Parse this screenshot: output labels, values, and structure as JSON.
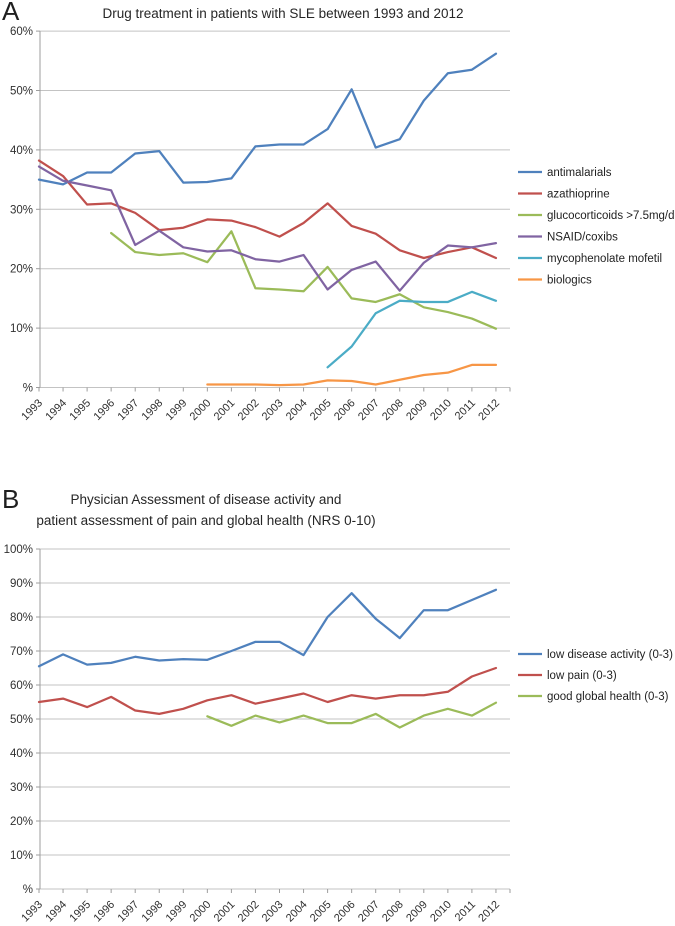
{
  "panels": [
    {
      "label": "A",
      "title": "Drug treatment in patients with SLE between 1993 and 2012"
    },
    {
      "label": "B",
      "title_line1": "Physician Assessment of disease activity and",
      "title_line2": "patient assessment of pain and global health (NRS 0-10)"
    }
  ],
  "chart_data": [
    {
      "type": "line",
      "title": "Drug treatment in patients with SLE between 1993 and 2012",
      "x": [
        1993,
        1994,
        1995,
        1996,
        1997,
        1998,
        1999,
        2000,
        2001,
        2002,
        2003,
        2004,
        2005,
        2006,
        2007,
        2008,
        2009,
        2010,
        2011,
        2012
      ],
      "ylim": [
        0,
        60
      ],
      "ytick_step": 10,
      "ytick_labels": [
        "%",
        "10%",
        "20%",
        "30%",
        "40%",
        "50%",
        "60%"
      ],
      "grid": true,
      "legend_position": "right",
      "series": [
        {
          "name": "antimalarials",
          "color": "#4F81BD",
          "values": [
            35.0,
            34.2,
            36.2,
            36.2,
            39.4,
            39.8,
            34.5,
            34.6,
            35.2,
            40.6,
            40.9,
            40.9,
            43.5,
            50.2,
            40.4,
            41.8,
            48.3,
            52.9,
            53.5,
            56.2
          ]
        },
        {
          "name": "azathioprine",
          "color": "#C0504D",
          "values": [
            38.2,
            35.6,
            30.8,
            31.0,
            29.4,
            26.5,
            26.9,
            28.3,
            28.1,
            27.0,
            25.4,
            27.7,
            31.0,
            27.2,
            25.9,
            23.1,
            21.8,
            22.8,
            23.6,
            21.8
          ]
        },
        {
          "name": "glucocorticoids >7.5mg/d",
          "color": "#9BBB59",
          "values": [
            null,
            null,
            null,
            26.0,
            22.8,
            22.3,
            22.6,
            21.1,
            26.3,
            16.7,
            16.5,
            16.2,
            20.3,
            15.0,
            14.4,
            15.7,
            13.5,
            12.7,
            11.6,
            9.9
          ]
        },
        {
          "name": "NSAID/coxibs",
          "color": "#8064A2",
          "values": [
            37.2,
            34.8,
            34.0,
            33.2,
            24.0,
            26.4,
            23.6,
            22.9,
            23.1,
            21.6,
            21.2,
            22.3,
            16.5,
            19.8,
            21.2,
            16.3,
            21.0,
            23.9,
            23.6,
            24.3
          ]
        },
        {
          "name": "mycophenolate mofetil",
          "color": "#4BACC6",
          "values": [
            null,
            null,
            null,
            null,
            null,
            null,
            null,
            null,
            null,
            null,
            null,
            null,
            3.4,
            6.9,
            12.5,
            14.6,
            14.4,
            14.4,
            16.1,
            14.6
          ]
        },
        {
          "name": "biologics",
          "color": "#F79646",
          "values": [
            null,
            null,
            null,
            null,
            null,
            null,
            null,
            0.5,
            0.5,
            0.5,
            0.4,
            0.5,
            1.2,
            1.1,
            0.5,
            1.3,
            2.1,
            2.5,
            3.8,
            3.8
          ]
        }
      ]
    },
    {
      "type": "line",
      "title": "Physician Assessment of disease activity and patient assessment of pain and global health (NRS 0-10)",
      "x": [
        1993,
        1994,
        1995,
        1996,
        1997,
        1998,
        1999,
        2000,
        2001,
        2002,
        2003,
        2004,
        2005,
        2006,
        2007,
        2008,
        2009,
        2010,
        2011,
        2012
      ],
      "ylim": [
        0,
        100
      ],
      "ytick_step": 10,
      "ytick_labels": [
        "%",
        "10%",
        "20%",
        "30%",
        "40%",
        "50%",
        "60%",
        "70%",
        "80%",
        "90%",
        "100%"
      ],
      "grid": true,
      "legend_position": "right",
      "series": [
        {
          "name": "low disease activity (0-3)",
          "color": "#4F81BD",
          "values": [
            65.5,
            69.0,
            66.0,
            66.5,
            68.3,
            67.2,
            67.6,
            67.4,
            70.0,
            72.7,
            72.7,
            68.8,
            80.0,
            87.0,
            79.5,
            73.8,
            82.0,
            82.0,
            85.0,
            88.0
          ]
        },
        {
          "name": "low pain (0-3)",
          "color": "#C0504D",
          "values": [
            55.0,
            56.0,
            53.5,
            56.5,
            52.5,
            51.5,
            53.0,
            55.5,
            57.0,
            54.5,
            56.0,
            57.5,
            55.0,
            57.0,
            56.0,
            57.0,
            57.0,
            58.0,
            62.5,
            65.0
          ]
        },
        {
          "name": "good global health (0-3)",
          "color": "#9BBB59",
          "values": [
            null,
            null,
            null,
            null,
            null,
            null,
            null,
            50.8,
            48.0,
            51.0,
            49.0,
            51.0,
            48.8,
            48.8,
            51.5,
            47.5,
            51.0,
            53.0,
            51.0,
            54.8
          ]
        }
      ]
    }
  ]
}
